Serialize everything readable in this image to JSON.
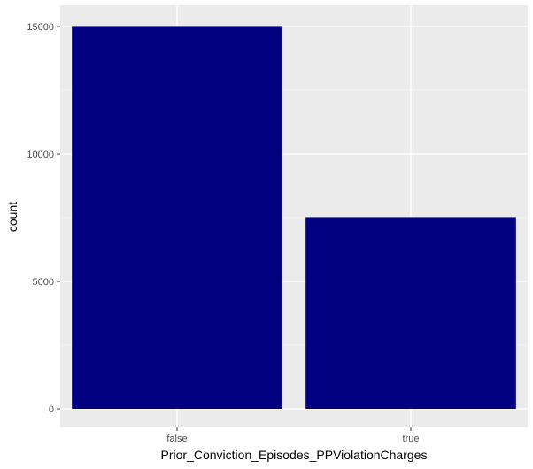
{
  "chart_data": {
    "type": "bar",
    "categories": [
      "false",
      "true"
    ],
    "values": [
      15020,
      7520
    ],
    "xlabel": "Prior_Conviction_Episodes_PPViolationCharges",
    "ylabel": "count",
    "ylim": [
      0,
      15500
    ],
    "yticks": [
      0,
      5000,
      10000,
      15000
    ],
    "ytick_labels": [
      "0",
      "5000",
      "10000",
      "15000"
    ],
    "grid": true,
    "colors": {
      "bar": "#000080",
      "panel": "#ebebeb",
      "grid": "#ffffff"
    }
  }
}
